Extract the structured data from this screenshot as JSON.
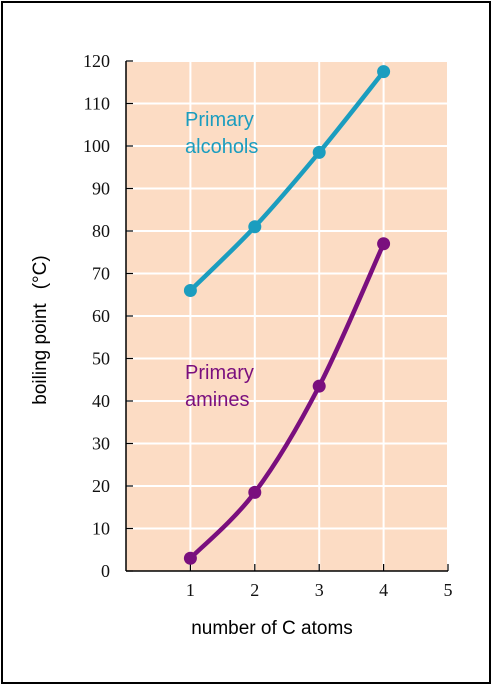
{
  "chart_data": {
    "type": "line",
    "xlabel": "number of C atoms",
    "ylabel": "boiling point",
    "ylabel_unit": "(°C)",
    "xlim": [
      0,
      5
    ],
    "ylim": [
      0,
      120
    ],
    "x_ticks": [
      1,
      2,
      3,
      4,
      5
    ],
    "y_ticks": [
      0,
      10,
      20,
      30,
      40,
      50,
      60,
      70,
      80,
      90,
      100,
      110,
      120
    ],
    "grid": true,
    "plot_background": "#fcdcc4",
    "grid_color": "#ffffff",
    "series": [
      {
        "label_lines": [
          "Primary",
          "alcohols"
        ],
        "color": "#1b9dbf",
        "x": [
          1,
          2,
          3,
          4
        ],
        "y": [
          66,
          81,
          98.5,
          117.5
        ]
      },
      {
        "label_lines": [
          "Primary",
          "amines"
        ],
        "color": "#7a0f7e",
        "x": [
          1,
          2,
          3,
          4
        ],
        "y": [
          3,
          18.5,
          43.5,
          77
        ]
      }
    ]
  }
}
